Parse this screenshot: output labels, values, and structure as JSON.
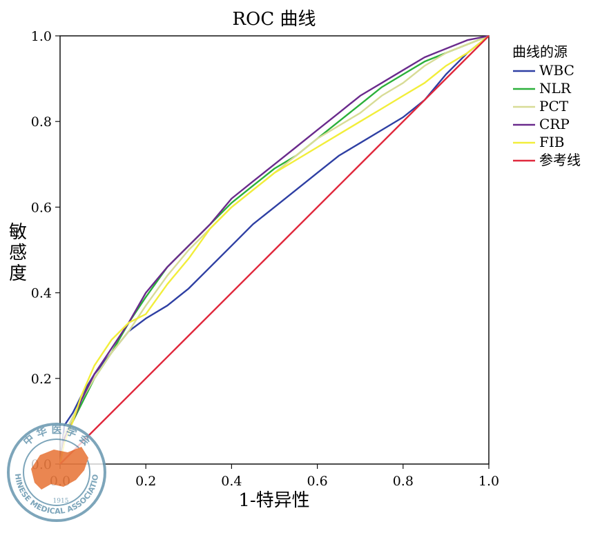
{
  "chart_data": {
    "type": "line",
    "title": "ROC 曲线",
    "xlabel": "1-特异性",
    "ylabel": "敏感度",
    "xlim": [
      0,
      1
    ],
    "ylim": [
      0,
      1
    ],
    "xticks": [
      "0.0",
      "0.2",
      "0.4",
      "0.6",
      "0.8",
      "1.0"
    ],
    "yticks": [
      "0.0",
      "0.2",
      "0.4",
      "0.6",
      "0.8",
      "1.0"
    ],
    "legend_title": "曲线的源",
    "legend_position": "right",
    "series": [
      {
        "name": "WBC",
        "color": "#2e3fa3",
        "x": [
          0,
          0.01,
          0.03,
          0.05,
          0.08,
          0.12,
          0.16,
          0.2,
          0.25,
          0.3,
          0.35,
          0.4,
          0.45,
          0.5,
          0.55,
          0.6,
          0.65,
          0.7,
          0.75,
          0.8,
          0.85,
          0.9,
          0.95,
          1.0
        ],
        "y": [
          0,
          0.09,
          0.12,
          0.16,
          0.21,
          0.26,
          0.31,
          0.34,
          0.37,
          0.41,
          0.46,
          0.51,
          0.56,
          0.6,
          0.64,
          0.68,
          0.72,
          0.75,
          0.78,
          0.81,
          0.85,
          0.91,
          0.96,
          1.0
        ]
      },
      {
        "name": "NLR",
        "color": "#2bb03a",
        "x": [
          0,
          0.01,
          0.03,
          0.05,
          0.08,
          0.12,
          0.16,
          0.2,
          0.25,
          0.3,
          0.35,
          0.4,
          0.45,
          0.5,
          0.55,
          0.6,
          0.65,
          0.7,
          0.75,
          0.8,
          0.85,
          0.9,
          0.95,
          1.0
        ],
        "y": [
          0,
          0.06,
          0.1,
          0.14,
          0.2,
          0.26,
          0.33,
          0.39,
          0.46,
          0.51,
          0.56,
          0.61,
          0.65,
          0.69,
          0.72,
          0.76,
          0.8,
          0.84,
          0.88,
          0.91,
          0.94,
          0.96,
          0.98,
          1.0
        ]
      },
      {
        "name": "PCT",
        "color": "#d8dc96",
        "x": [
          0,
          0.01,
          0.03,
          0.05,
          0.08,
          0.12,
          0.16,
          0.2,
          0.25,
          0.3,
          0.35,
          0.4,
          0.45,
          0.5,
          0.55,
          0.6,
          0.65,
          0.7,
          0.75,
          0.8,
          0.85,
          0.9,
          0.95,
          1.0
        ],
        "y": [
          0,
          0.07,
          0.11,
          0.15,
          0.2,
          0.26,
          0.31,
          0.37,
          0.44,
          0.5,
          0.55,
          0.6,
          0.64,
          0.68,
          0.72,
          0.76,
          0.79,
          0.82,
          0.86,
          0.89,
          0.93,
          0.96,
          0.98,
          1.0
        ]
      },
      {
        "name": "CRP",
        "color": "#6a2a8c",
        "x": [
          0,
          0.01,
          0.03,
          0.05,
          0.08,
          0.12,
          0.16,
          0.2,
          0.25,
          0.3,
          0.35,
          0.4,
          0.45,
          0.5,
          0.55,
          0.6,
          0.65,
          0.7,
          0.75,
          0.8,
          0.85,
          0.9,
          0.95,
          1.0
        ],
        "y": [
          0,
          0.06,
          0.1,
          0.15,
          0.21,
          0.27,
          0.33,
          0.4,
          0.46,
          0.51,
          0.56,
          0.62,
          0.66,
          0.7,
          0.74,
          0.78,
          0.82,
          0.86,
          0.89,
          0.92,
          0.95,
          0.97,
          0.99,
          1.0
        ]
      },
      {
        "name": "FIB",
        "color": "#f2ee3a",
        "x": [
          0,
          0.01,
          0.03,
          0.05,
          0.08,
          0.12,
          0.16,
          0.2,
          0.25,
          0.3,
          0.35,
          0.4,
          0.45,
          0.5,
          0.55,
          0.6,
          0.65,
          0.7,
          0.75,
          0.8,
          0.85,
          0.9,
          0.95,
          1.0
        ],
        "y": [
          0,
          0.05,
          0.1,
          0.16,
          0.23,
          0.29,
          0.33,
          0.35,
          0.42,
          0.48,
          0.55,
          0.6,
          0.64,
          0.68,
          0.71,
          0.74,
          0.77,
          0.8,
          0.83,
          0.86,
          0.89,
          0.93,
          0.96,
          1.0
        ]
      },
      {
        "name": "参考线",
        "color": "#e0283c",
        "x": [
          0,
          1
        ],
        "y": [
          0,
          1
        ]
      }
    ]
  },
  "watermark": {
    "top_text": "中 华 医 学 会",
    "bottom_text": "CHINESE MEDICAL ASSOCIATION",
    "year": "1915",
    "ring_color": "#6f9cb3",
    "map_color": "#e8793f"
  }
}
